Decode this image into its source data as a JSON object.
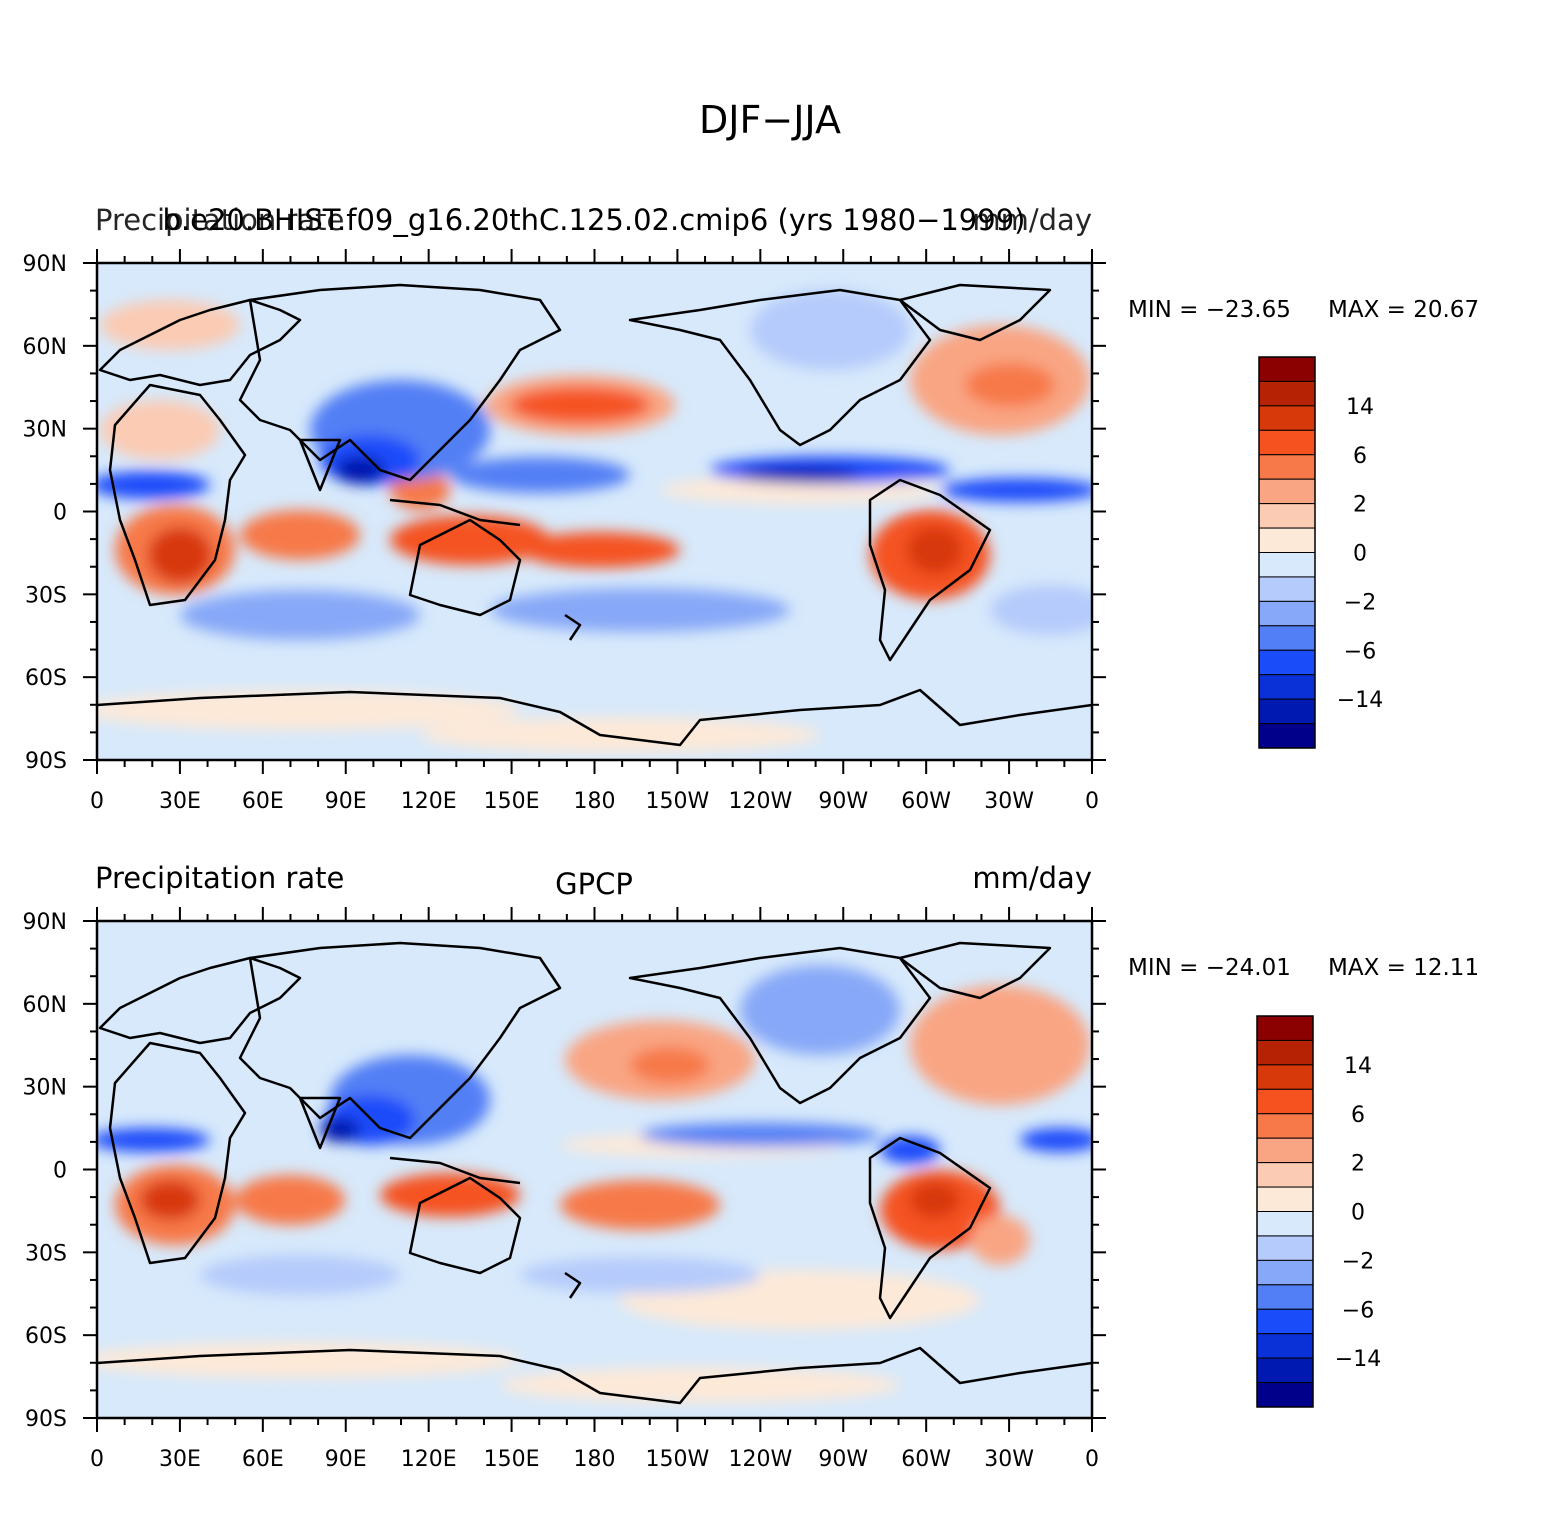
{
  "main_title": "DJF−JJA",
  "lon_ticks": [
    "0",
    "30E",
    "60E",
    "90E",
    "120E",
    "150E",
    "180",
    "150W",
    "120W",
    "90W",
    "60W",
    "30W",
    "0"
  ],
  "lat_ticks": [
    "90N",
    "60N",
    "30N",
    "0",
    "30S",
    "60S",
    "90S"
  ],
  "colorbar_labels": [
    "14",
    "6",
    "2",
    "0",
    "−2",
    "−6",
    "−14"
  ],
  "colorbar_colors": [
    "#8b0000",
    "#b52204",
    "#d8390a",
    "#f55220",
    "#f7794a",
    "#f9a583",
    "#fbcbb4",
    "#fde9d8",
    "#d7e9fb",
    "#b5cbfb",
    "#87a8f8",
    "#527ff5",
    "#1a4cfa",
    "#0a30d8",
    "#0019b0",
    "#00008b"
  ],
  "panels": [
    {
      "left_title": "Precipitation rate",
      "overlap_title": "b.e20.BHIST.f09_g16.20thC.125.02.cmip6 (yrs 1980−1999)",
      "center_title": "",
      "right_title": "mm/day",
      "min_label": "MIN = −23.65",
      "max_label": "MAX =   20.67",
      "min": -23.65,
      "max": 20.67
    },
    {
      "left_title": "Precipitation rate",
      "overlap_title": "",
      "center_title": "GPCP",
      "right_title": "mm/day",
      "min_label": "MIN = −24.01",
      "max_label": "MAX =   12.11",
      "min": -24.01,
      "max": 12.11
    }
  ]
}
